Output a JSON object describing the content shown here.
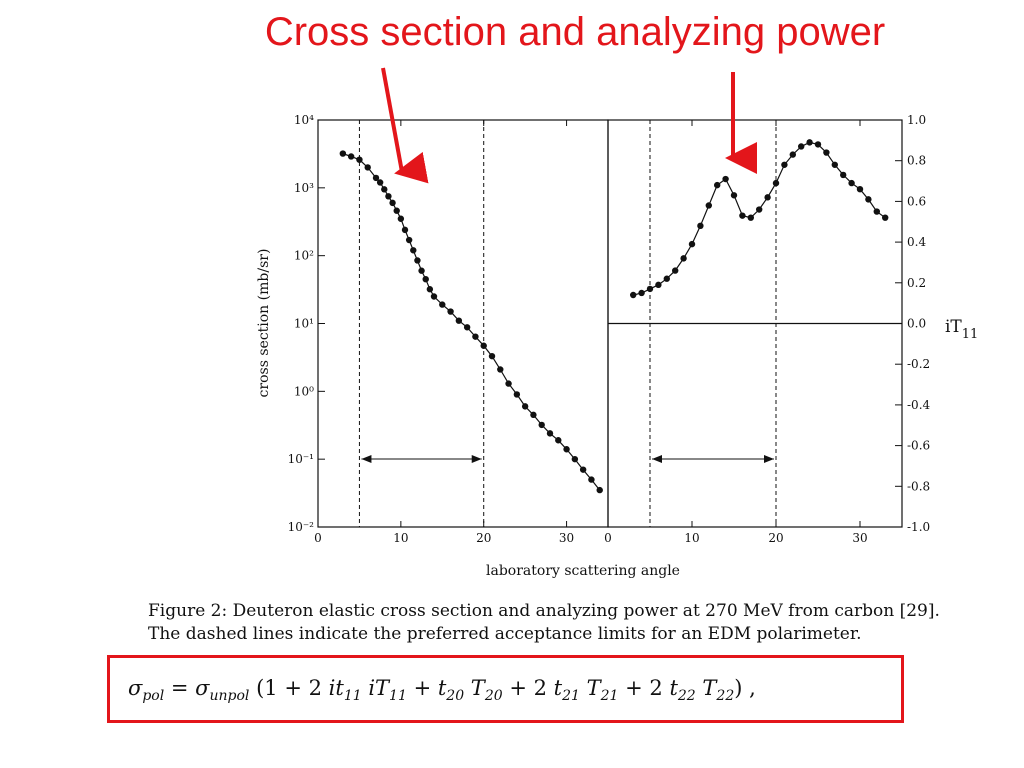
{
  "slide": {
    "title": "Cross section and analyzing power",
    "accent_color": "#e3161b"
  },
  "caption": {
    "line1": "Figure 2: Deuteron elastic cross section and analyzing power at 270 MeV from carbon [29].",
    "line2": "The dashed lines indicate the preferred acceptance limits for an EDM polarimeter."
  },
  "formula": {
    "text": "σ_pol = σ_unpol (1 + 2 it11 iT11 + t20 T20 + 2 t21 T21 + 2 t22 T22),"
  },
  "chart_data": [
    {
      "type": "scatter",
      "title": "",
      "xlabel": "laboratory scattering angle",
      "ylabel": "cross section  (mb/sr)",
      "yscale": "log",
      "xlim": [
        0,
        35
      ],
      "ylim": [
        0.01,
        10000
      ],
      "x_ticks": [
        "0",
        "10",
        "20",
        "30"
      ],
      "y_ticks": [
        "10⁻²",
        "10⁻¹",
        "10⁰",
        "10¹",
        "10²",
        "10³",
        "10⁴"
      ],
      "acceptance_limits": [
        5,
        20
      ],
      "series": [
        {
          "x": [
            3,
            4,
            5,
            6,
            7,
            7.5,
            8,
            8.5,
            9,
            9.5,
            10,
            10.5,
            11,
            11.5,
            12,
            12.5,
            13,
            13.5,
            14,
            15,
            16,
            17,
            18,
            19,
            20,
            21,
            22,
            23,
            24,
            25,
            26,
            27,
            28,
            29,
            30,
            31,
            32,
            33,
            34
          ],
          "y": [
            3200,
            2900,
            2600,
            2000,
            1400,
            1200,
            950,
            750,
            600,
            460,
            350,
            240,
            170,
            120,
            85,
            60,
            45,
            32,
            25,
            19,
            15,
            11,
            8.8,
            6.4,
            4.7,
            3.3,
            2.1,
            1.3,
            0.9,
            0.6,
            0.45,
            0.32,
            0.24,
            0.19,
            0.14,
            0.1,
            0.07,
            0.05,
            0.035
          ]
        }
      ]
    },
    {
      "type": "scatter",
      "title": "",
      "xlabel": "laboratory scattering angle",
      "ylabel": "iT11",
      "xlim": [
        0,
        35
      ],
      "ylim": [
        -1.0,
        1.0
      ],
      "x_ticks": [
        "0",
        "10",
        "20",
        "30"
      ],
      "y_ticks": [
        "1.0",
        "0.8",
        "0.6",
        "0.4",
        "0.2",
        "0.0",
        "-0.2",
        "-0.4",
        "-0.6",
        "-0.8",
        "-1.0"
      ],
      "acceptance_limits": [
        5,
        20
      ],
      "series": [
        {
          "x": [
            3,
            4,
            5,
            6,
            7,
            8,
            9,
            10,
            11,
            12,
            13,
            14,
            15,
            16,
            17,
            18,
            19,
            20,
            21,
            22,
            23,
            24,
            25,
            26,
            27,
            28,
            29,
            30,
            31,
            32,
            33
          ],
          "y": [
            0.14,
            0.15,
            0.17,
            0.19,
            0.22,
            0.26,
            0.32,
            0.39,
            0.48,
            0.58,
            0.68,
            0.71,
            0.63,
            0.53,
            0.52,
            0.56,
            0.62,
            0.69,
            0.78,
            0.83,
            0.87,
            0.89,
            0.88,
            0.84,
            0.78,
            0.73,
            0.69,
            0.66,
            0.61,
            0.55,
            0.52
          ]
        }
      ]
    }
  ]
}
